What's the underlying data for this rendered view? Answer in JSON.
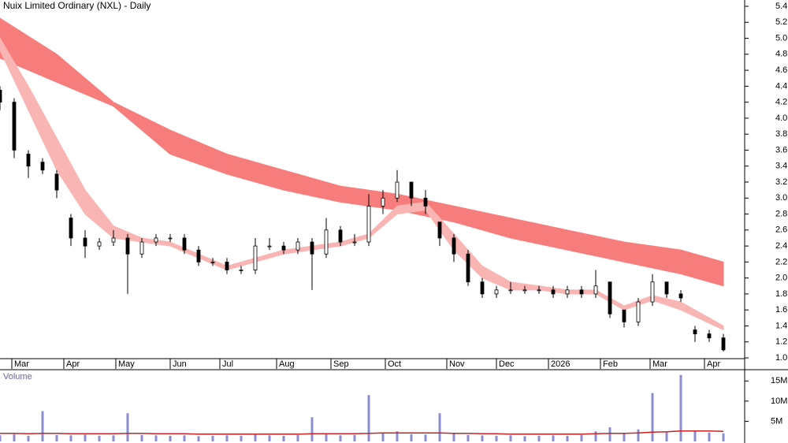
{
  "chart_data": {
    "type": "candlestick",
    "title": "Nuix Limited Ordinary (NXL) - Daily",
    "x": [
      0,
      6,
      12,
      18,
      24,
      30,
      36,
      42,
      48,
      54,
      60,
      66,
      72,
      78,
      84,
      90,
      96,
      102,
      108,
      114,
      120,
      126,
      132,
      138,
      144,
      150,
      156,
      162,
      168,
      174,
      180,
      186,
      192,
      198,
      204,
      210,
      216,
      222,
      228,
      234,
      240,
      246,
      252,
      258,
      264,
      270,
      276,
      282,
      288,
      294,
      300,
      306
    ],
    "open": [
      4.35,
      4.2,
      3.55,
      3.45,
      3.3,
      2.75,
      2.5,
      2.4,
      2.45,
      2.5,
      2.3,
      2.45,
      2.5,
      2.5,
      2.35,
      2.2,
      2.2,
      2.1,
      2.1,
      2.4,
      2.4,
      2.35,
      2.45,
      2.3,
      2.6,
      2.45,
      2.45,
      2.9,
      3.0,
      3.2,
      3.0,
      2.7,
      2.5,
      2.3,
      1.95,
      1.8,
      1.85,
      1.85,
      1.85,
      1.85,
      1.8,
      1.85,
      1.8,
      1.95,
      1.6,
      1.45,
      1.7,
      1.95,
      1.8,
      1.35,
      1.3,
      1.25
    ],
    "high": [
      4.4,
      4.25,
      3.6,
      3.5,
      3.35,
      2.8,
      2.6,
      2.5,
      2.6,
      2.55,
      2.5,
      2.55,
      2.55,
      2.55,
      2.4,
      2.25,
      2.25,
      2.15,
      2.5,
      2.5,
      2.45,
      2.5,
      2.5,
      2.75,
      2.65,
      2.55,
      3.05,
      3.1,
      3.35,
      3.2,
      3.1,
      2.7,
      2.55,
      2.35,
      2.0,
      1.9,
      1.95,
      1.9,
      1.9,
      1.9,
      1.9,
      1.9,
      2.1,
      1.95,
      1.6,
      1.75,
      2.05,
      1.95,
      1.85,
      1.4,
      1.35,
      1.3
    ],
    "low": [
      4.1,
      3.5,
      3.25,
      3.3,
      3.0,
      2.4,
      2.25,
      2.35,
      2.4,
      1.8,
      2.25,
      2.4,
      2.45,
      2.3,
      2.15,
      2.15,
      2.05,
      2.05,
      2.05,
      2.35,
      2.3,
      2.3,
      1.85,
      2.25,
      2.4,
      2.4,
      2.4,
      2.8,
      2.95,
      2.9,
      2.8,
      2.4,
      2.2,
      1.9,
      1.75,
      1.75,
      1.8,
      1.8,
      1.8,
      1.75,
      1.75,
      1.75,
      1.75,
      1.5,
      1.38,
      1.4,
      1.65,
      1.75,
      1.7,
      1.2,
      1.2,
      1.08
    ],
    "close": [
      4.2,
      3.6,
      3.4,
      3.35,
      3.1,
      2.5,
      2.4,
      2.45,
      2.5,
      2.3,
      2.45,
      2.5,
      2.5,
      2.35,
      2.2,
      2.2,
      2.1,
      2.1,
      2.4,
      2.4,
      2.35,
      2.45,
      2.3,
      2.6,
      2.45,
      2.45,
      2.9,
      3.0,
      3.2,
      3.0,
      2.9,
      2.5,
      2.3,
      1.95,
      1.8,
      1.85,
      1.85,
      1.85,
      1.85,
      1.8,
      1.85,
      1.8,
      1.9,
      1.55,
      1.45,
      1.7,
      1.95,
      1.8,
      1.75,
      1.3,
      1.25,
      1.1
    ],
    "bands": [
      {
        "color": "#f77d7d",
        "x": [
          0,
          24,
          48,
          72,
          96,
          120,
          144,
          168,
          192,
          216,
          240,
          264,
          288,
          306
        ],
        "upper": [
          5.25,
          4.8,
          4.2,
          3.85,
          3.55,
          3.35,
          3.15,
          3.05,
          2.9,
          2.75,
          2.6,
          2.45,
          2.35,
          2.2
        ],
        "lower": [
          4.75,
          4.45,
          4.15,
          3.55,
          3.3,
          3.1,
          2.95,
          2.85,
          2.7,
          2.5,
          2.35,
          2.2,
          2.05,
          1.9
        ]
      },
      {
        "color": "#f9b4b4",
        "x": [
          0,
          12,
          24,
          36,
          48,
          60,
          72,
          84,
          96,
          108,
          120,
          132,
          144,
          156,
          168,
          180,
          192,
          204,
          216,
          228,
          240,
          252,
          264,
          276,
          288,
          306
        ],
        "upper": [
          5.0,
          4.4,
          3.75,
          3.1,
          2.65,
          2.5,
          2.45,
          2.3,
          2.15,
          2.25,
          2.35,
          2.4,
          2.45,
          2.55,
          2.9,
          2.95,
          2.55,
          2.15,
          1.95,
          1.9,
          1.85,
          1.85,
          1.65,
          1.78,
          1.7,
          1.4
        ],
        "lower": [
          4.85,
          4.1,
          3.35,
          2.8,
          2.5,
          2.45,
          2.4,
          2.25,
          2.1,
          2.2,
          2.3,
          2.35,
          2.4,
          2.5,
          2.8,
          2.85,
          2.35,
          2.0,
          1.85,
          1.85,
          1.8,
          1.8,
          1.6,
          1.72,
          1.6,
          1.35
        ]
      }
    ],
    "xlim": [
      0,
      315
    ],
    "xticks": [
      {
        "value": 5,
        "label": "Mar"
      },
      {
        "value": 27,
        "label": "Apr"
      },
      {
        "value": 49,
        "label": "May"
      },
      {
        "value": 72,
        "label": "Jun"
      },
      {
        "value": 93,
        "label": "Jul"
      },
      {
        "value": 117,
        "label": "Aug"
      },
      {
        "value": 140,
        "label": "Sep"
      },
      {
        "value": 163,
        "label": "Oct"
      },
      {
        "value": 189,
        "label": "Nov"
      },
      {
        "value": 210,
        "label": "Dec"
      },
      {
        "value": 232,
        "label": "2026"
      },
      {
        "value": 254,
        "label": "Feb"
      },
      {
        "value": 275,
        "label": "Mar"
      },
      {
        "value": 298,
        "label": "Apr"
      }
    ],
    "ylim": [
      1.0,
      5.4
    ],
    "yticks": [
      {
        "value": 1.0,
        "label": "1.0"
      },
      1.2,
      1.4,
      1.6,
      1.8,
      {
        "value": 2.0,
        "label": "2.0"
      },
      2.2,
      2.4,
      2.6,
      2.8,
      {
        "value": 3.0,
        "label": "3.0"
      },
      3.2,
      3.4,
      3.6,
      3.8,
      {
        "value": 4.0,
        "label": "4.0"
      },
      4.2,
      4.4,
      4.6,
      4.8,
      {
        "value": 5.0,
        "label": "5.0"
      },
      5.2,
      5.4
    ],
    "volume": {
      "label": "Volume",
      "color": "#8c8cd0",
      "avg_color": "#cc2222",
      "values": [
        1500000,
        1800000,
        1400000,
        7500000,
        1600000,
        1500000,
        1700000,
        1400000,
        1500000,
        7000000,
        1600000,
        1500000,
        1400000,
        1500000,
        1300000,
        1400000,
        1500000,
        1400000,
        1800000,
        1500000,
        1400000,
        1600000,
        6000000,
        2000000,
        1500000,
        1600000,
        11500000,
        2200000,
        2500000,
        1800000,
        1700000,
        7000000,
        1900000,
        1600000,
        1500000,
        1400000,
        1500000,
        1300000,
        1400000,
        1500000,
        1400000,
        1600000,
        2500000,
        3500000,
        2000000,
        3000000,
        12000000,
        2500000,
        16500000,
        2500000,
        2200000,
        2000000
      ],
      "average": [
        2000000,
        2000000,
        1900000,
        2000000,
        2000000,
        1900000,
        1900000,
        1900000,
        1900000,
        2000000,
        2000000,
        1900000,
        1900000,
        1900000,
        1800000,
        1800000,
        1800000,
        1800000,
        1800000,
        1800000,
        1800000,
        1800000,
        1900000,
        1900000,
        1900000,
        1900000,
        2000000,
        2100000,
        2100000,
        2100000,
        2100000,
        2100000,
        2000000,
        2000000,
        1900000,
        1900000,
        1800000,
        1800000,
        1800000,
        1800000,
        1800000,
        1800000,
        1900000,
        2000000,
        2000000,
        2100000,
        2300000,
        2400000,
        2600000,
        2600000,
        2600000,
        2500000
      ],
      "ylim": [
        0,
        17600000
      ],
      "yticks": [
        {
          "value": 5000000,
          "label": "5M"
        },
        {
          "value": 10000000,
          "label": "10M"
        },
        {
          "value": 15000000,
          "label": "15M"
        }
      ]
    }
  }
}
